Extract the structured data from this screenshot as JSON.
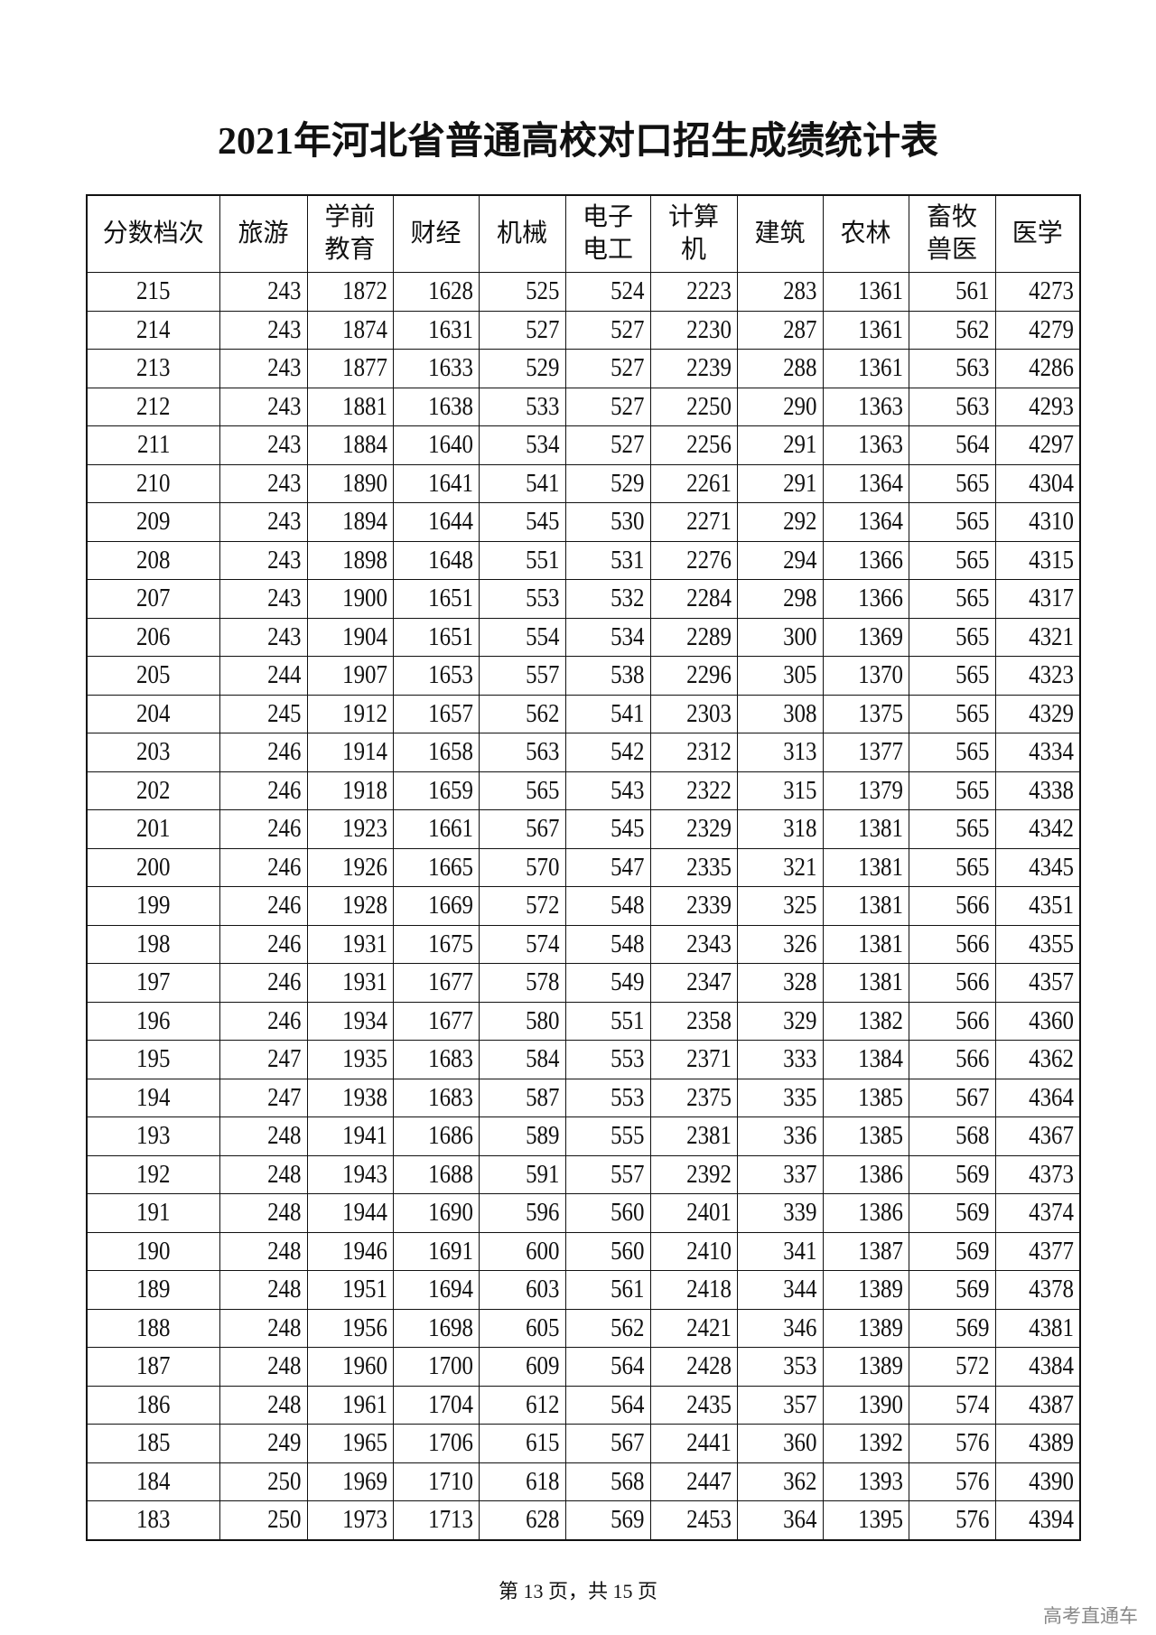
{
  "title": "2021年河北省普通高校对口招生成绩统计表",
  "headers": [
    "分数档次",
    "旅游",
    "学前\n教育",
    "财经",
    "机械",
    "电子\n电工",
    "计算机",
    "建筑",
    "农林",
    "畜牧\n兽医",
    "医学"
  ],
  "rows": [
    [
      "215",
      "243",
      "1872",
      "1628",
      "525",
      "524",
      "2223",
      "283",
      "1361",
      "561",
      "4273"
    ],
    [
      "214",
      "243",
      "1874",
      "1631",
      "527",
      "527",
      "2230",
      "287",
      "1361",
      "562",
      "4279"
    ],
    [
      "213",
      "243",
      "1877",
      "1633",
      "529",
      "527",
      "2239",
      "288",
      "1361",
      "563",
      "4286"
    ],
    [
      "212",
      "243",
      "1881",
      "1638",
      "533",
      "527",
      "2250",
      "290",
      "1363",
      "563",
      "4293"
    ],
    [
      "211",
      "243",
      "1884",
      "1640",
      "534",
      "527",
      "2256",
      "291",
      "1363",
      "564",
      "4297"
    ],
    [
      "210",
      "243",
      "1890",
      "1641",
      "541",
      "529",
      "2261",
      "291",
      "1364",
      "565",
      "4304"
    ],
    [
      "209",
      "243",
      "1894",
      "1644",
      "545",
      "530",
      "2271",
      "292",
      "1364",
      "565",
      "4310"
    ],
    [
      "208",
      "243",
      "1898",
      "1648",
      "551",
      "531",
      "2276",
      "294",
      "1366",
      "565",
      "4315"
    ],
    [
      "207",
      "243",
      "1900",
      "1651",
      "553",
      "532",
      "2284",
      "298",
      "1366",
      "565",
      "4317"
    ],
    [
      "206",
      "243",
      "1904",
      "1651",
      "554",
      "534",
      "2289",
      "300",
      "1369",
      "565",
      "4321"
    ],
    [
      "205",
      "244",
      "1907",
      "1653",
      "557",
      "538",
      "2296",
      "305",
      "1370",
      "565",
      "4323"
    ],
    [
      "204",
      "245",
      "1912",
      "1657",
      "562",
      "541",
      "2303",
      "308",
      "1375",
      "565",
      "4329"
    ],
    [
      "203",
      "246",
      "1914",
      "1658",
      "563",
      "542",
      "2312",
      "313",
      "1377",
      "565",
      "4334"
    ],
    [
      "202",
      "246",
      "1918",
      "1659",
      "565",
      "543",
      "2322",
      "315",
      "1379",
      "565",
      "4338"
    ],
    [
      "201",
      "246",
      "1923",
      "1661",
      "567",
      "545",
      "2329",
      "318",
      "1381",
      "565",
      "4342"
    ],
    [
      "200",
      "246",
      "1926",
      "1665",
      "570",
      "547",
      "2335",
      "321",
      "1381",
      "565",
      "4345"
    ],
    [
      "199",
      "246",
      "1928",
      "1669",
      "572",
      "548",
      "2339",
      "325",
      "1381",
      "566",
      "4351"
    ],
    [
      "198",
      "246",
      "1931",
      "1675",
      "574",
      "548",
      "2343",
      "326",
      "1381",
      "566",
      "4355"
    ],
    [
      "197",
      "246",
      "1931",
      "1677",
      "578",
      "549",
      "2347",
      "328",
      "1381",
      "566",
      "4357"
    ],
    [
      "196",
      "246",
      "1934",
      "1677",
      "580",
      "551",
      "2358",
      "329",
      "1382",
      "566",
      "4360"
    ],
    [
      "195",
      "247",
      "1935",
      "1683",
      "584",
      "553",
      "2371",
      "333",
      "1384",
      "566",
      "4362"
    ],
    [
      "194",
      "247",
      "1938",
      "1683",
      "587",
      "553",
      "2375",
      "335",
      "1385",
      "567",
      "4364"
    ],
    [
      "193",
      "248",
      "1941",
      "1686",
      "589",
      "555",
      "2381",
      "336",
      "1385",
      "568",
      "4367"
    ],
    [
      "192",
      "248",
      "1943",
      "1688",
      "591",
      "557",
      "2392",
      "337",
      "1386",
      "569",
      "4373"
    ],
    [
      "191",
      "248",
      "1944",
      "1690",
      "596",
      "560",
      "2401",
      "339",
      "1386",
      "569",
      "4374"
    ],
    [
      "190",
      "248",
      "1946",
      "1691",
      "600",
      "560",
      "2410",
      "341",
      "1387",
      "569",
      "4377"
    ],
    [
      "189",
      "248",
      "1951",
      "1694",
      "603",
      "561",
      "2418",
      "344",
      "1389",
      "569",
      "4378"
    ],
    [
      "188",
      "248",
      "1956",
      "1698",
      "605",
      "562",
      "2421",
      "346",
      "1389",
      "569",
      "4381"
    ],
    [
      "187",
      "248",
      "1960",
      "1700",
      "609",
      "564",
      "2428",
      "353",
      "1389",
      "572",
      "4384"
    ],
    [
      "186",
      "248",
      "1961",
      "1704",
      "612",
      "564",
      "2435",
      "357",
      "1390",
      "574",
      "4387"
    ],
    [
      "185",
      "249",
      "1965",
      "1706",
      "615",
      "567",
      "2441",
      "360",
      "1392",
      "576",
      "4389"
    ],
    [
      "184",
      "250",
      "1969",
      "1710",
      "618",
      "568",
      "2447",
      "362",
      "1393",
      "576",
      "4390"
    ],
    [
      "183",
      "250",
      "1973",
      "1713",
      "628",
      "569",
      "2453",
      "364",
      "1395",
      "576",
      "4394"
    ]
  ],
  "footer": "第 13 页，共 15 页",
  "brand": "高考直通车"
}
